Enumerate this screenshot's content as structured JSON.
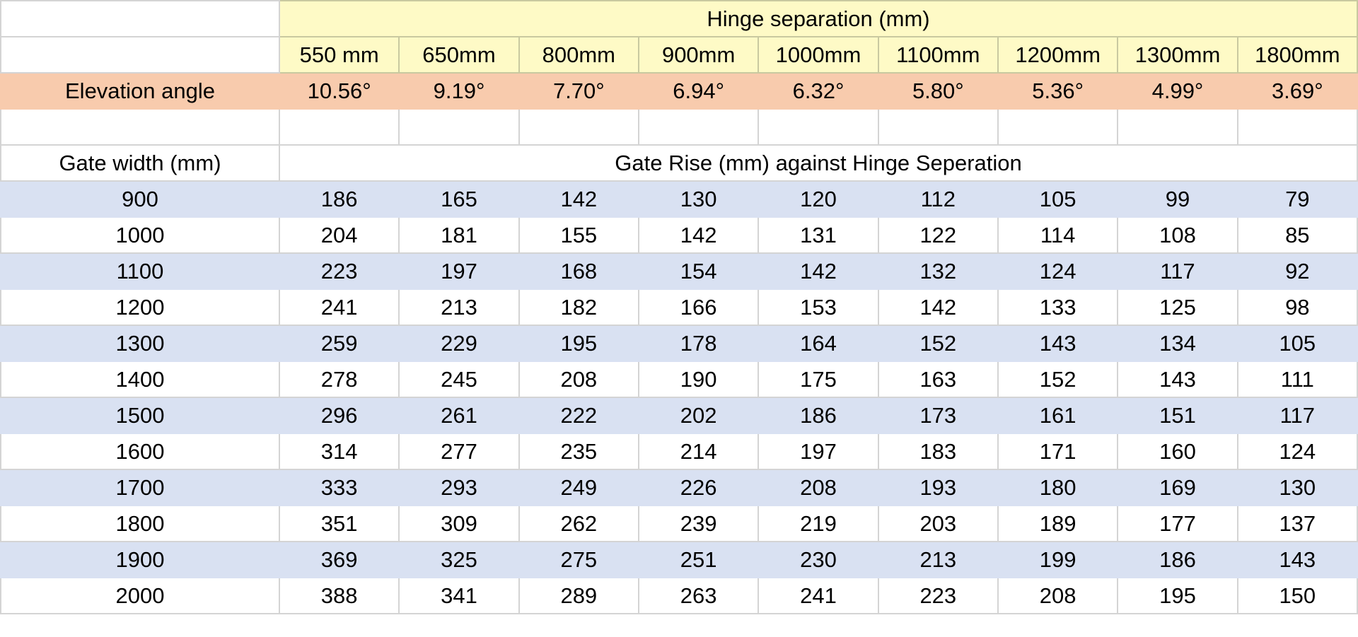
{
  "header": {
    "title": "Hinge separation (mm)",
    "columns": [
      "550 mm",
      "650mm",
      "800mm",
      "900mm",
      "1000mm",
      "1100mm",
      "1200mm",
      "1300mm",
      "1800mm"
    ]
  },
  "elevation": {
    "label": "Elevation angle",
    "values": [
      "10.56°",
      "9.19°",
      "7.70°",
      "6.94°",
      "6.32°",
      "5.80°",
      "5.36°",
      "4.99°",
      "3.69°"
    ]
  },
  "gate": {
    "label": "Gate width (mm)",
    "caption": "Gate Rise (mm) against Hinge Seperation"
  },
  "table": {
    "rows": [
      [
        900,
        186,
        165,
        142,
        130,
        120,
        112,
        105,
        99,
        79
      ],
      [
        1000,
        204,
        181,
        155,
        142,
        131,
        122,
        114,
        108,
        85
      ],
      [
        1100,
        223,
        197,
        168,
        154,
        142,
        132,
        124,
        117,
        92
      ],
      [
        1200,
        241,
        213,
        182,
        166,
        153,
        142,
        133,
        125,
        98
      ],
      [
        1300,
        259,
        229,
        195,
        178,
        164,
        152,
        143,
        134,
        105
      ],
      [
        1400,
        278,
        245,
        208,
        190,
        175,
        163,
        152,
        143,
        111
      ],
      [
        1500,
        296,
        261,
        222,
        202,
        186,
        173,
        161,
        151,
        117
      ],
      [
        1600,
        314,
        277,
        235,
        214,
        197,
        183,
        171,
        160,
        124
      ],
      [
        1700,
        333,
        293,
        249,
        226,
        208,
        193,
        180,
        169,
        130
      ],
      [
        1800,
        351,
        309,
        262,
        239,
        219,
        203,
        189,
        177,
        137
      ],
      [
        1900,
        369,
        325,
        275,
        251,
        230,
        213,
        199,
        186,
        143
      ],
      [
        2000,
        388,
        341,
        289,
        263,
        241,
        223,
        208,
        195,
        150
      ]
    ]
  }
}
